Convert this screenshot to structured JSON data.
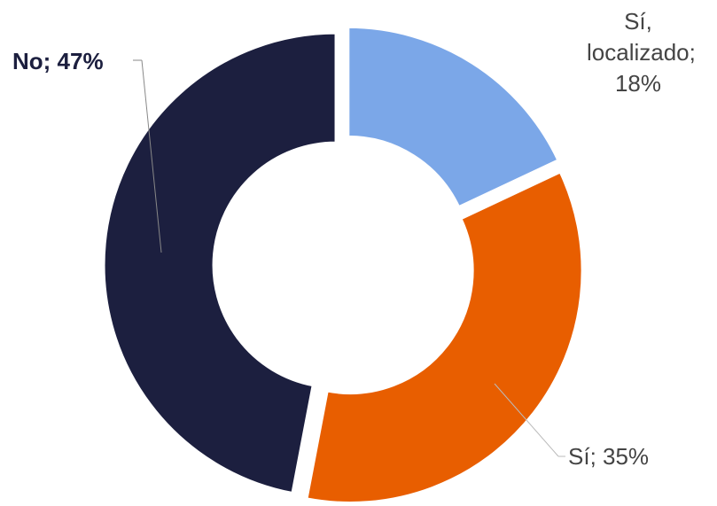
{
  "chart_data": {
    "type": "donut",
    "values": [
      18,
      35,
      47
    ],
    "value_labels": [
      "Sí, localizado; 18%",
      "Sí; 35%",
      "No; 47%"
    ],
    "colors": [
      "#7ba7e8",
      "#e85e00",
      "#1c1f3f"
    ]
  }
}
